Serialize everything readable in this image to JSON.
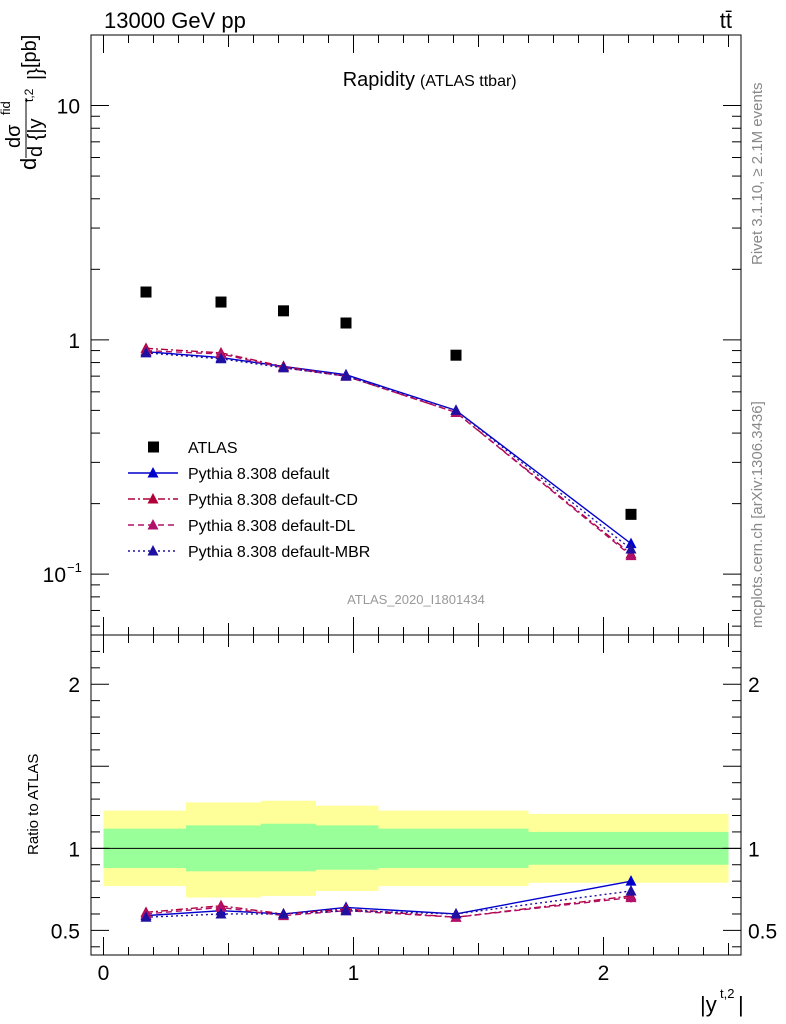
{
  "header": {
    "energy_label": "13000 GeV pp",
    "process_label": "tt̄"
  },
  "side_labels": {
    "rivet": "Rivet 3.1.10, ≥ 2.1M events",
    "mcplots": "mcplots.cern.ch [arXiv:1306.3436]"
  },
  "chart_data": [
    {
      "type": "line",
      "title": "Rapidity",
      "subtitle": "(ATLAS ttbar)",
      "analysis_label": "ATLAS_2020_I1801434",
      "ylabel": "dσ/d{|y^{t,2}|} [pb]",
      "ylabel_parts": {
        "d": "d",
        "numerator": "dσ",
        "superscript": "fid",
        "denominator": "d {|y",
        "den_sup": "t,2",
        "den_close": "|}",
        "unit": "[pb]"
      },
      "xlim": [
        -0.05,
        2.55
      ],
      "ylim": [
        0.055,
        20
      ],
      "log_y": true,
      "y_ticks": [
        {
          "value": 0.1,
          "label": "10",
          "sup": "−1"
        },
        {
          "value": 1,
          "label": "1",
          "sup": ""
        },
        {
          "value": 10,
          "label": "10",
          "sup": ""
        }
      ],
      "legend_position": "center-left",
      "x": [
        0.17,
        0.47,
        0.72,
        0.97,
        1.41,
        2.11
      ],
      "series": [
        {
          "name": "ATLAS",
          "color": "#000000",
          "marker": "square",
          "line": "none",
          "values": [
            1.6,
            1.45,
            1.33,
            1.18,
            0.86,
            0.18
          ]
        },
        {
          "name": "Pythia 8.308 default",
          "color": "#0000cc",
          "marker": "triangle",
          "line": "solid",
          "values": [
            0.89,
            0.84,
            0.77,
            0.71,
            0.5,
            0.135
          ]
        },
        {
          "name": "Pythia 8.308 default-CD",
          "color": "#b0003a",
          "marker": "triangle",
          "line": "dashdot",
          "values": [
            0.92,
            0.88,
            0.77,
            0.7,
            0.49,
            0.122
          ]
        },
        {
          "name": "Pythia 8.308 default-DL",
          "color": "#b0106a",
          "marker": "triangle",
          "line": "dashed",
          "values": [
            0.9,
            0.87,
            0.76,
            0.7,
            0.49,
            0.12
          ]
        },
        {
          "name": "Pythia 8.308 default-MBR",
          "color": "#2010a0",
          "marker": "triangle",
          "line": "dotted",
          "values": [
            0.88,
            0.83,
            0.76,
            0.7,
            0.5,
            0.128
          ]
        }
      ]
    },
    {
      "type": "line",
      "ylabel": "Ratio to ATLAS",
      "xlabel": "|y^{t,2}|",
      "xlabel_parts": {
        "base": "|y",
        "sup": "t,2",
        "close": "|"
      },
      "xlim": [
        -0.05,
        2.55
      ],
      "ylim": [
        0.35,
        2.3
      ],
      "x_ticks": [
        0,
        1,
        2
      ],
      "y_ticks": [
        0.5,
        1,
        2
      ],
      "reference_line": 1,
      "bands": {
        "bin_edges": [
          0,
          0.33,
          0.63,
          0.85,
          1.1,
          1.7,
          2.5
        ],
        "outer": {
          "color": "#ffff99",
          "low": [
            0.77,
            0.7,
            0.71,
            0.74,
            0.77,
            0.79
          ],
          "high": [
            1.23,
            1.28,
            1.29,
            1.26,
            1.23,
            1.21
          ]
        },
        "inner": {
          "color": "#99ff99",
          "low": [
            0.88,
            0.86,
            0.86,
            0.87,
            0.88,
            0.9
          ],
          "high": [
            1.12,
            1.14,
            1.15,
            1.14,
            1.12,
            1.1
          ]
        }
      },
      "x": [
        0.17,
        0.47,
        0.72,
        0.97,
        1.41,
        2.11
      ],
      "series": [
        {
          "name": "Pythia 8.308 default",
          "color": "#0000cc",
          "line": "solid",
          "values": [
            0.59,
            0.62,
            0.6,
            0.64,
            0.6,
            0.8
          ],
          "err": [
            0.02,
            0.02,
            0.02,
            0.02,
            0.02,
            0.03
          ]
        },
        {
          "name": "Pythia 8.308 default-CD",
          "color": "#b0003a",
          "line": "dashdot",
          "values": [
            0.61,
            0.65,
            0.6,
            0.63,
            0.58,
            0.71
          ],
          "err": [
            0.02,
            0.02,
            0.02,
            0.02,
            0.02,
            0.03
          ]
        },
        {
          "name": "Pythia 8.308 default-DL",
          "color": "#b0106a",
          "line": "dashed",
          "values": [
            0.6,
            0.64,
            0.59,
            0.62,
            0.58,
            0.7
          ],
          "err": [
            0.02,
            0.02,
            0.02,
            0.02,
            0.02,
            0.03
          ]
        },
        {
          "name": "Pythia 8.308 default-MBR",
          "color": "#2010a0",
          "line": "dotted",
          "values": [
            0.58,
            0.6,
            0.6,
            0.62,
            0.6,
            0.74
          ],
          "err": [
            0.02,
            0.02,
            0.02,
            0.02,
            0.02,
            0.03
          ]
        }
      ]
    }
  ]
}
